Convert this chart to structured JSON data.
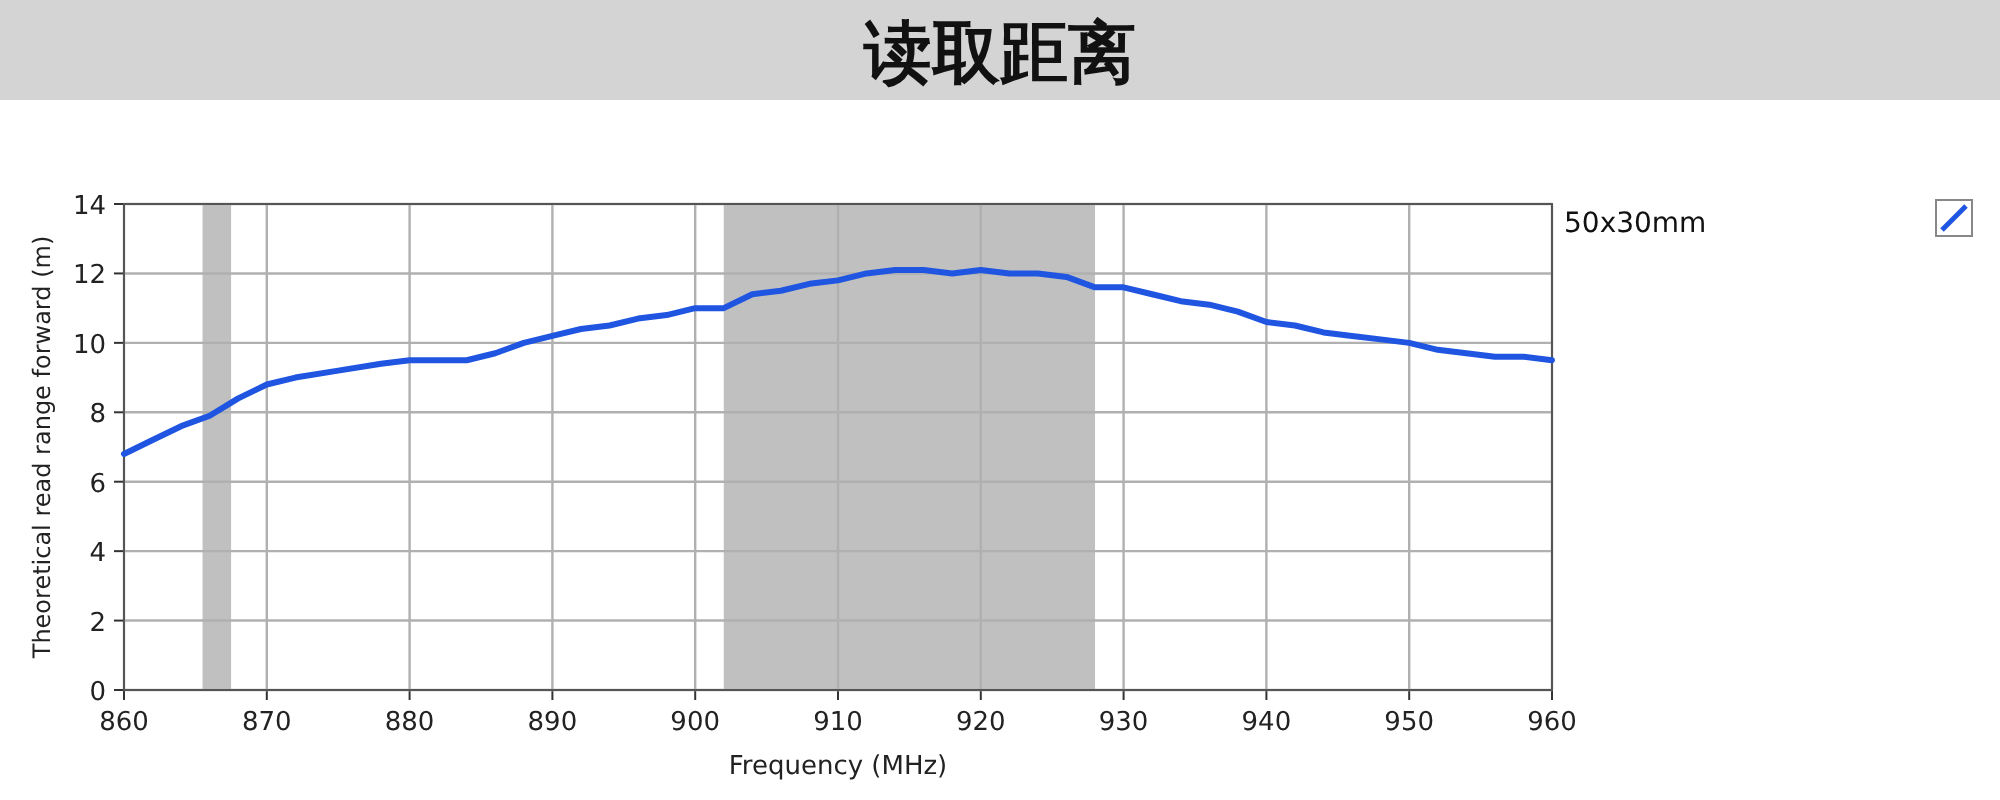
{
  "chart_data": {
    "type": "line",
    "title": "读取距离",
    "xlabel": "Frequency (MHz)",
    "ylabel": "Theoretical read range forward (m)",
    "xlim": [
      860,
      960
    ],
    "xticks": [
      860,
      870,
      880,
      890,
      900,
      910,
      920,
      930,
      940,
      950,
      960
    ],
    "ylim": [
      0,
      14
    ],
    "yticks": [
      0,
      2,
      4,
      6,
      8,
      10,
      12,
      14
    ],
    "grid": true,
    "legend": "top right",
    "bands": [
      {
        "axis": "x",
        "from": 865.5,
        "to": 867.5,
        "color": "#c0c0c0"
      },
      {
        "axis": "x",
        "from": 902,
        "to": 928,
        "color": "#c0c0c0"
      }
    ],
    "series": [
      {
        "name": "50x30mm",
        "color": "#1f55e0",
        "x": [
          860,
          862,
          864,
          866,
          868,
          870,
          872,
          875,
          878,
          880,
          884,
          886,
          888,
          890,
          892,
          894,
          896,
          898,
          900,
          902,
          904,
          906,
          908,
          910,
          912,
          914,
          916,
          918,
          920,
          922,
          924,
          926,
          928,
          930,
          932,
          934,
          936,
          938,
          940,
          942,
          944,
          946,
          948,
          950,
          952,
          954,
          956,
          958,
          960
        ],
        "values": [
          6.8,
          7.2,
          7.6,
          7.9,
          8.4,
          8.8,
          9.0,
          9.2,
          9.4,
          9.5,
          9.5,
          9.7,
          10.0,
          10.2,
          10.4,
          10.5,
          10.7,
          10.8,
          11.0,
          11.0,
          11.4,
          11.5,
          11.7,
          11.8,
          12.0,
          12.1,
          12.1,
          12.0,
          12.1,
          12.0,
          12.0,
          11.9,
          11.6,
          11.6,
          11.4,
          11.2,
          11.1,
          10.9,
          10.6,
          10.5,
          10.3,
          10.2,
          10.1,
          10.0,
          9.8,
          9.7,
          9.6,
          9.6,
          9.5
        ]
      }
    ]
  }
}
